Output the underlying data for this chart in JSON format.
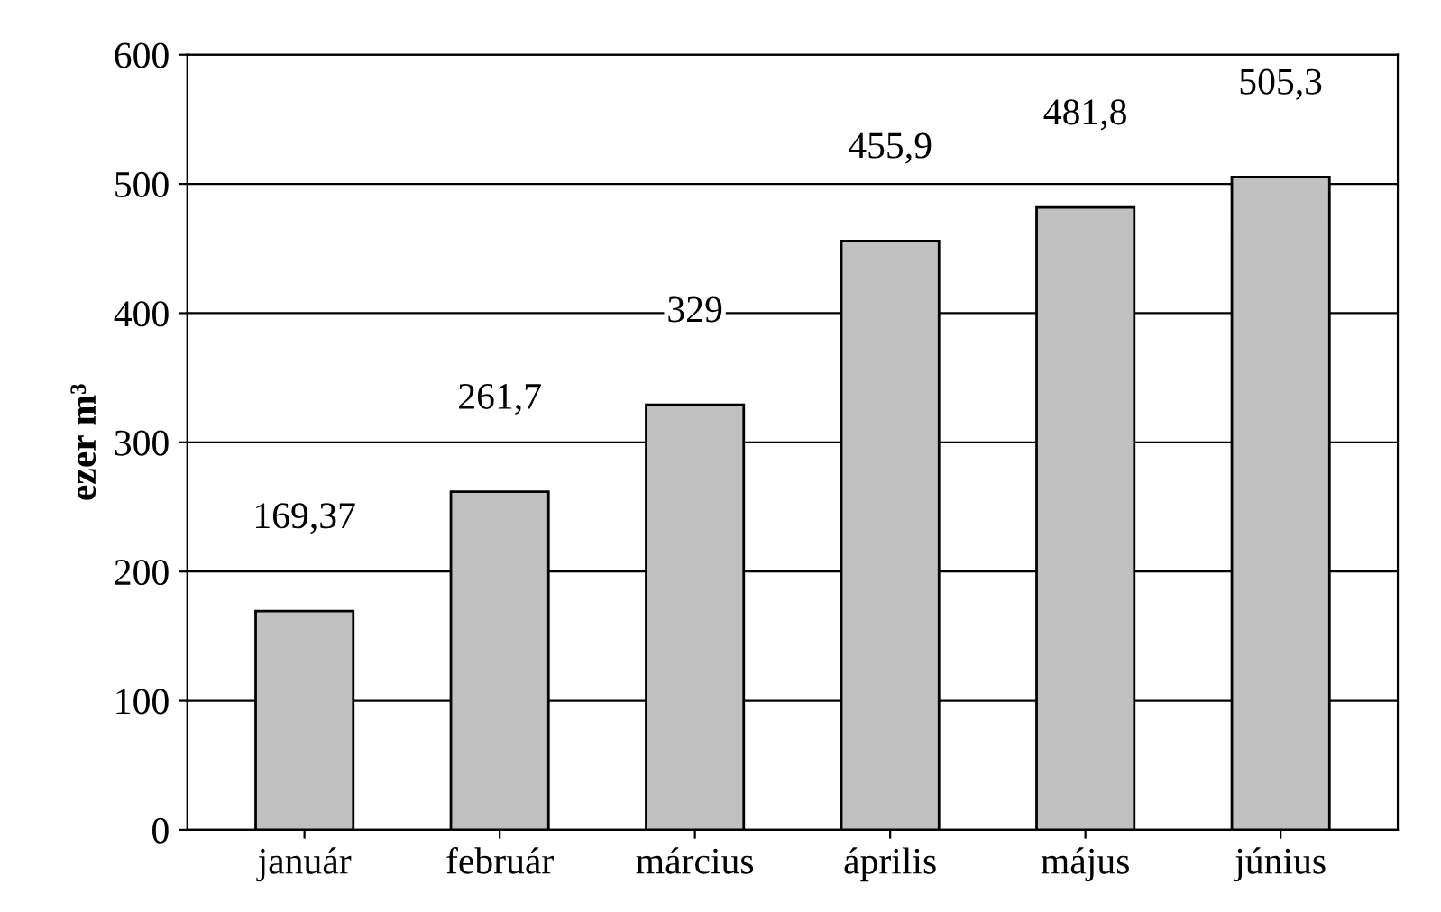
{
  "chart_data": {
    "type": "bar",
    "ylabel": "ezer m³",
    "categories": [
      "január",
      "február",
      "március",
      "április",
      "május",
      "június"
    ],
    "values": [
      169.37,
      261.7,
      329,
      455.9,
      481.8,
      505.3
    ],
    "value_labels": [
      "169,37",
      "261,7",
      "329",
      "455,9",
      "481,8",
      "505,3"
    ],
    "color": "#c0c0c0",
    "ylim": [
      0,
      600
    ],
    "yticks": [
      0,
      100,
      200,
      300,
      400,
      500,
      600
    ],
    "grid": "y",
    "legend": false
  }
}
